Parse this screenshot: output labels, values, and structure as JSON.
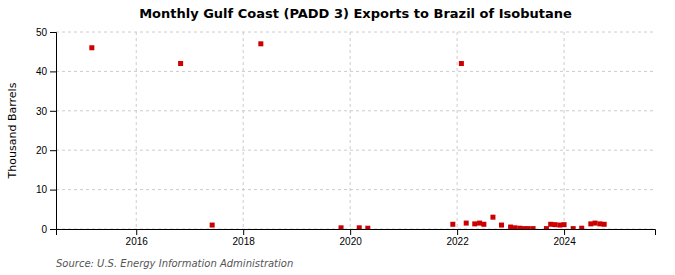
{
  "chart_data": {
    "type": "scatter",
    "title": "Monthly Gulf Coast (PADD 3) Exports to Brazil of Isobutane",
    "ylabel": "Thousand Barrels",
    "source": "Source: U.S. Energy Information Administration",
    "color": "#cc0000",
    "marker": "square",
    "grid": true,
    "xlim": [
      2014.5,
      2025.7
    ],
    "ylim": [
      0,
      50
    ],
    "xticks": [
      2016,
      2018,
      2020,
      2022,
      2024
    ],
    "yticks": [
      0,
      10,
      20,
      30,
      40,
      50
    ],
    "x": [
      2015.17,
      2016.83,
      2017.42,
      2018.33,
      2019.83,
      2020.17,
      2020.33,
      2021.92,
      2022.08,
      2022.17,
      2022.33,
      2022.42,
      2022.5,
      2022.67,
      2022.83,
      2023.0,
      2023.08,
      2023.17,
      2023.25,
      2023.33,
      2023.42,
      2023.67,
      2023.75,
      2023.83,
      2023.92,
      2024.0,
      2024.17,
      2024.33,
      2024.5,
      2024.58,
      2024.67,
      2024.75
    ],
    "values": [
      46,
      42,
      1,
      47,
      0.3,
      0.3,
      0.2,
      1.2,
      42,
      1.5,
      1.3,
      1.5,
      1.2,
      3.0,
      1.0,
      0.5,
      0.3,
      0.2,
      0.1,
      0.1,
      0.1,
      0.1,
      1.2,
      1.1,
      1.0,
      1.1,
      0.1,
      0.2,
      1.3,
      1.5,
      1.3,
      1.2
    ]
  }
}
